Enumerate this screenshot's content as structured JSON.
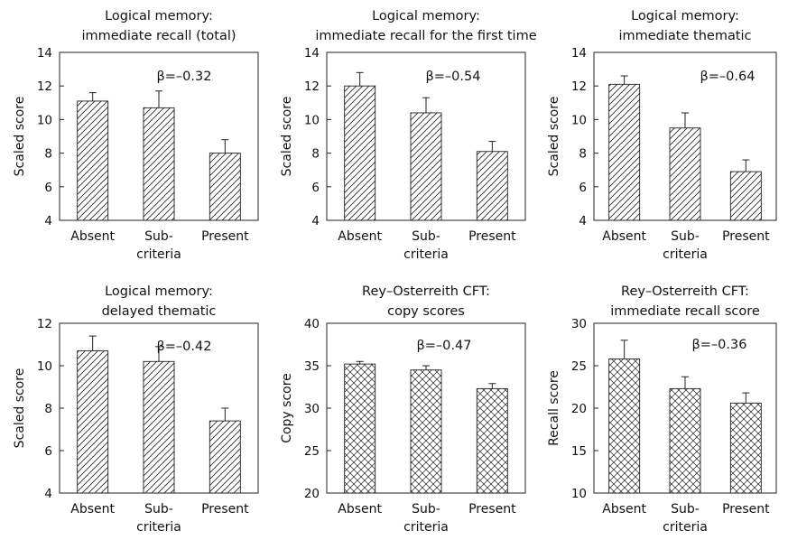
{
  "chart_data": [
    {
      "type": "bar",
      "title": [
        "Logical memory:",
        "immediate recall (total)"
      ],
      "ylabel": "Scaled score",
      "ylim": [
        4,
        14
      ],
      "yticks": [
        4,
        6,
        8,
        10,
        12,
        14
      ],
      "ytick_labels": [
        "4",
        "6",
        "8",
        "10",
        "12",
        "14"
      ],
      "categories": [
        [
          "Absent"
        ],
        [
          "Sub-",
          "criteria"
        ],
        [
          "Present"
        ]
      ],
      "values": [
        11.1,
        10.7,
        8.0
      ],
      "error_upper": [
        11.6,
        11.7,
        8.8
      ],
      "annotation": "β=–0.32",
      "pattern": "hatch"
    },
    {
      "type": "bar",
      "title": [
        "Logical memory:",
        "immediate recall for the first time"
      ],
      "ylabel": "Scaled score",
      "ylim": [
        4,
        14
      ],
      "yticks": [
        4,
        6,
        8,
        10,
        12,
        14
      ],
      "ytick_labels": [
        "4",
        "6",
        "8",
        "10",
        "12",
        "14"
      ],
      "categories": [
        [
          "Absent"
        ],
        [
          "Sub-",
          "criteria"
        ],
        [
          "Present"
        ]
      ],
      "values": [
        12.0,
        10.4,
        8.1
      ],
      "error_upper": [
        12.8,
        11.3,
        8.7
      ],
      "annotation": "β=–0.54",
      "pattern": "hatch"
    },
    {
      "type": "bar",
      "title": [
        "Logical memory:",
        "immediate thematic"
      ],
      "ylabel": "Scaled score",
      "ylim": [
        4,
        14
      ],
      "yticks": [
        4,
        6,
        8,
        10,
        12,
        14
      ],
      "ytick_labels": [
        "4",
        "6",
        "8",
        "10",
        "12",
        "14"
      ],
      "categories": [
        [
          "Absent"
        ],
        [
          "Sub-",
          "criteria"
        ],
        [
          "Present"
        ]
      ],
      "values": [
        12.1,
        9.5,
        6.9
      ],
      "error_upper": [
        12.6,
        10.4,
        7.6
      ],
      "annotation": "β=–0.64",
      "pattern": "hatch"
    },
    {
      "type": "bar",
      "title": [
        "Logical memory:",
        "delayed thematic"
      ],
      "ylabel": "Scaled score",
      "ylim": [
        4,
        12
      ],
      "yticks": [
        4,
        6,
        8,
        10,
        12
      ],
      "ytick_labels": [
        "4",
        "6",
        "8",
        "10",
        "12"
      ],
      "categories": [
        [
          "Absent"
        ],
        [
          "Sub-",
          "criteria"
        ],
        [
          "Present"
        ]
      ],
      "values": [
        10.7,
        10.2,
        7.4
      ],
      "error_upper": [
        11.4,
        10.9,
        8.0
      ],
      "annotation": "β=–0.42",
      "pattern": "hatch"
    },
    {
      "type": "bar",
      "title": [
        "Rey–Osterreith CFT:",
        "copy scores"
      ],
      "ylabel": "Copy score",
      "ylim": [
        20,
        40
      ],
      "yticks": [
        20,
        25,
        30,
        35,
        40
      ],
      "ytick_labels": [
        "20",
        "25",
        "30",
        "35",
        "40"
      ],
      "categories": [
        [
          "Absent"
        ],
        [
          "Sub-",
          "criteria"
        ],
        [
          "Present"
        ]
      ],
      "values": [
        35.2,
        34.5,
        32.3
      ],
      "error_upper": [
        35.5,
        35.0,
        32.9
      ],
      "annotation": "β=–0.47",
      "pattern": "crosshatch"
    },
    {
      "type": "bar",
      "title": [
        "Rey–Osterreith CFT:",
        "immediate recall score"
      ],
      "ylabel": "Recall score",
      "ylim": [
        10,
        30
      ],
      "yticks": [
        10,
        15,
        20,
        25,
        30
      ],
      "ytick_labels": [
        "10",
        "15",
        "20",
        "25",
        "30"
      ],
      "categories": [
        [
          "Absent"
        ],
        [
          "Sub-",
          "criteria"
        ],
        [
          "Present"
        ]
      ],
      "values": [
        25.8,
        22.3,
        20.6
      ],
      "error_upper": [
        28.0,
        23.7,
        21.8
      ],
      "annotation": "β=–0.36",
      "pattern": "crosshatch"
    }
  ]
}
